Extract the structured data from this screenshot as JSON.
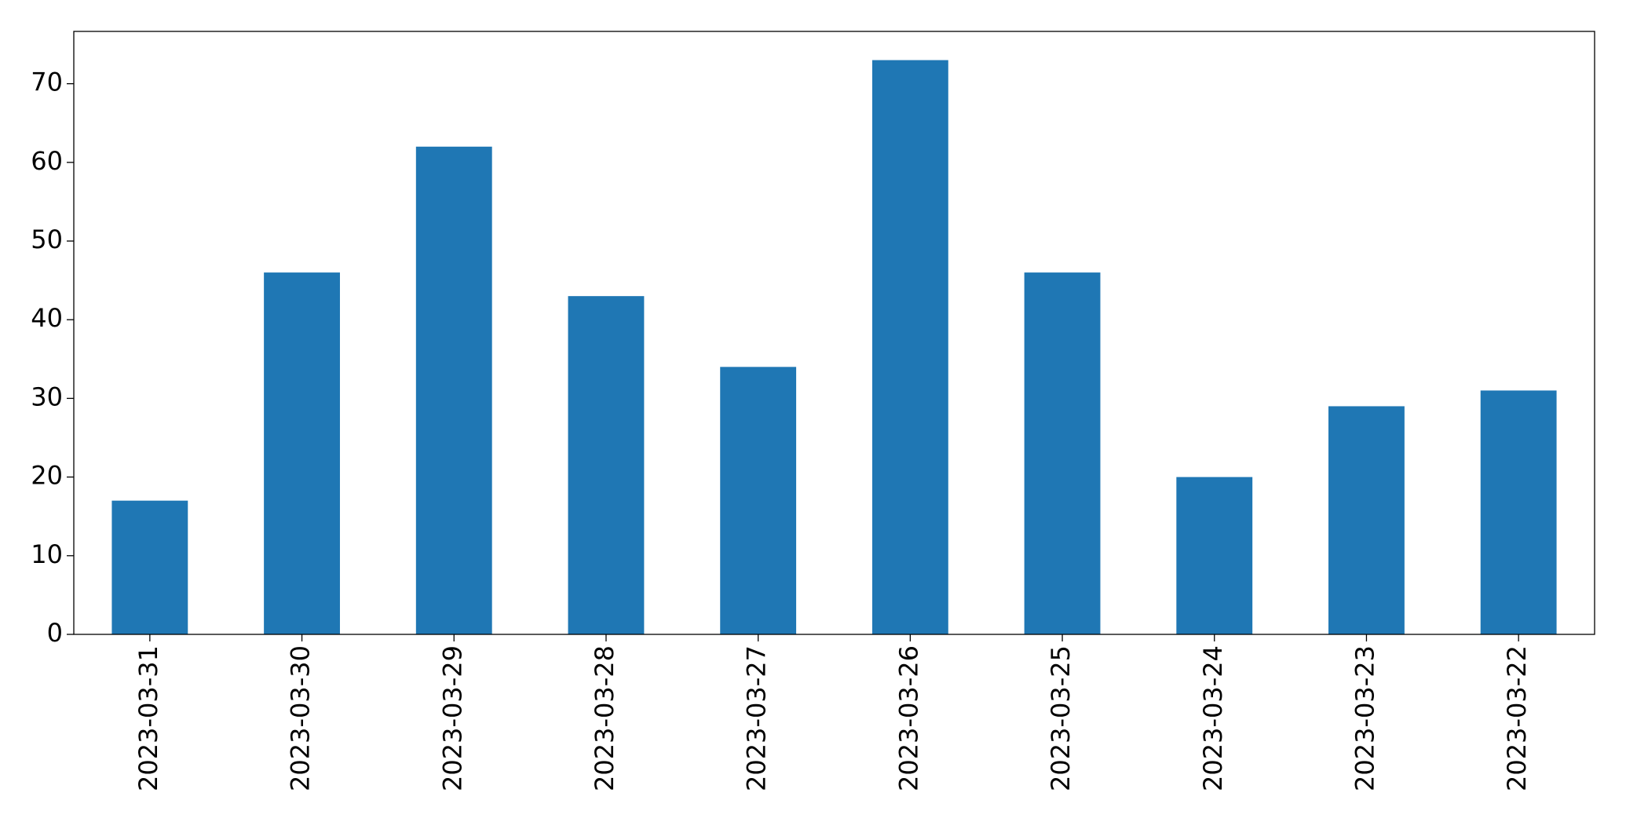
{
  "chart_data": {
    "type": "bar",
    "categories": [
      "2023-03-31",
      "2023-03-30",
      "2023-03-29",
      "2023-03-28",
      "2023-03-27",
      "2023-03-26",
      "2023-03-25",
      "2023-03-24",
      "2023-03-23",
      "2023-03-22"
    ],
    "values": [
      17,
      46,
      62,
      43,
      34,
      73,
      46,
      20,
      29,
      31
    ],
    "color": "#1f77b4",
    "ylim": [
      0,
      76.65
    ],
    "yticks": [
      0,
      10,
      20,
      30,
      40,
      50,
      60,
      70
    ],
    "grid": false
  }
}
